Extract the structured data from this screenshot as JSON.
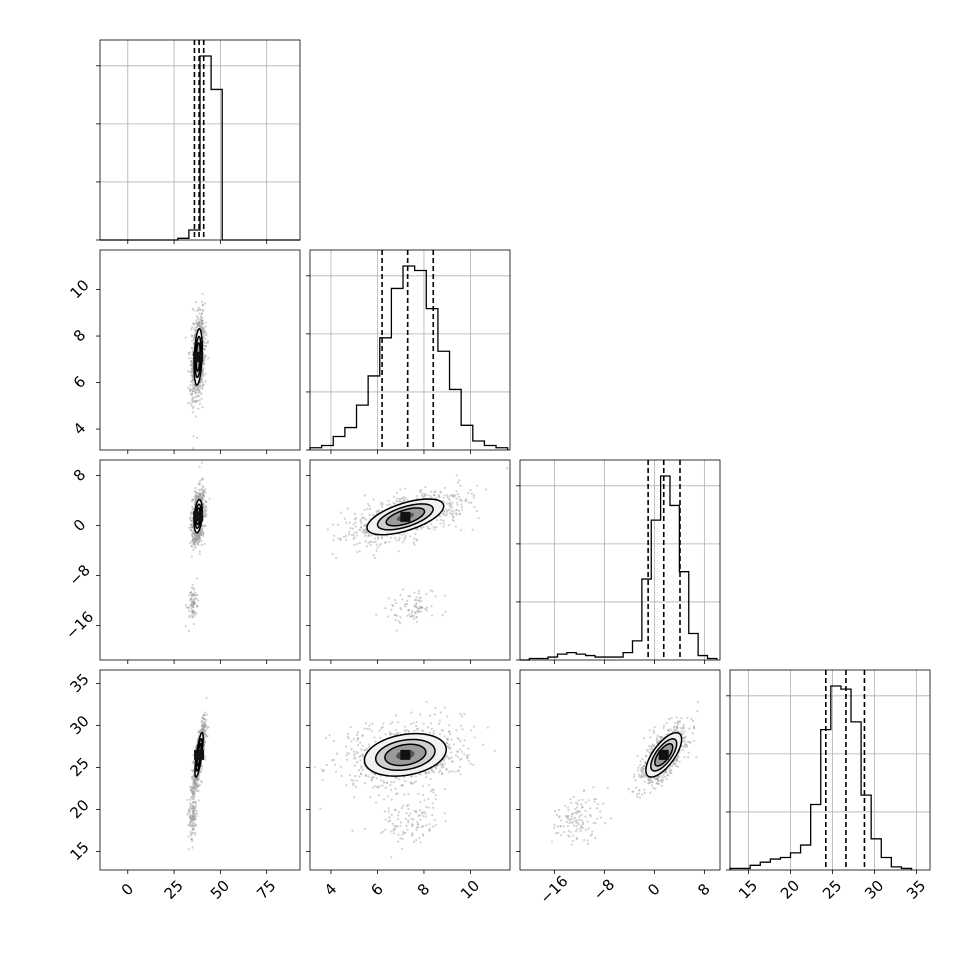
{
  "chart_data": {
    "type": "corner",
    "grid": true,
    "parameters": [
      {
        "range": [
          -15,
          93
        ],
        "ticks": [
          0,
          25,
          50,
          75
        ],
        "tick_labels": [
          "0",
          "25",
          "50",
          "75"
        ],
        "quantiles": [
          36,
          38.5,
          41
        ]
      },
      {
        "range": [
          3.1,
          11.7
        ],
        "ticks": [
          4,
          6,
          8,
          10
        ],
        "tick_labels": [
          "4",
          "6",
          "8",
          "10"
        ],
        "quantiles": [
          6.2,
          7.3,
          8.4
        ]
      },
      {
        "range": [
          -21.5,
          10.5
        ],
        "ticks": [
          -16,
          -8,
          0,
          8
        ],
        "tick_labels": [
          "−16",
          "−8",
          "0",
          "8"
        ],
        "quantiles": [
          -1,
          1.5,
          4.1
        ]
      },
      {
        "range": [
          12.8,
          36.6
        ],
        "ticks": [
          15,
          20,
          25,
          30,
          35
        ],
        "tick_labels": [
          "15",
          "20",
          "25",
          "30",
          "35"
        ],
        "quantiles": [
          24.2,
          26.6,
          28.8
        ]
      }
    ],
    "histograms": [
      {
        "param": 0,
        "bins": [
          -15,
          -9,
          -3,
          3,
          9,
          15,
          21,
          27,
          33,
          39,
          45,
          51,
          57,
          63,
          69,
          75,
          81,
          87,
          93
        ],
        "counts": [
          0,
          0,
          0,
          0,
          0,
          0,
          0,
          2,
          12,
          220,
          180,
          0,
          0,
          0,
          0,
          0,
          0,
          0
        ]
      },
      {
        "param": 1,
        "bins": [
          3.1,
          3.6,
          4.1,
          4.6,
          5.1,
          5.6,
          6.1,
          6.6,
          7.1,
          7.6,
          8.1,
          8.6,
          9.1,
          9.6,
          10.1,
          10.6,
          11.1,
          11.6
        ],
        "counts": [
          1,
          2,
          6,
          10,
          20,
          33,
          50,
          72,
          82,
          80,
          63,
          44,
          27,
          11,
          4,
          2,
          1
        ]
      },
      {
        "param": 2,
        "bins": [
          -21.5,
          -20,
          -18.5,
          -17,
          -15.5,
          -14,
          -12.5,
          -11,
          -9.5,
          -8,
          -6.5,
          -5,
          -3.5,
          -2,
          -0.5,
          1,
          2.5,
          4,
          5.5,
          7,
          8.5,
          10
        ],
        "counts": [
          0,
          1,
          1,
          2,
          4,
          5,
          4,
          3,
          2,
          2,
          2,
          5,
          13,
          55,
          95,
          125,
          105,
          60,
          18,
          3,
          1
        ]
      },
      {
        "param": 3,
        "bins": [
          12.8,
          14,
          15.2,
          16.4,
          17.6,
          18.8,
          20,
          21.2,
          22.4,
          23.6,
          24.8,
          26,
          27.2,
          28.4,
          29.6,
          30.8,
          32,
          33.2,
          34.4
        ],
        "counts": [
          1,
          1,
          3,
          5,
          7,
          8,
          11,
          16,
          42,
          90,
          118,
          116,
          95,
          48,
          20,
          8,
          2,
          1
        ]
      }
    ],
    "pairs": [
      {
        "x_param": 0,
        "y_param": 1,
        "center": [
          38,
          7.1
        ],
        "spread": [
          2,
          1.1
        ],
        "rho": 0.3,
        "cloud_spread": [
          3.2,
          1.6
        ],
        "outlier_fraction": 0
      },
      {
        "x_param": 0,
        "y_param": 2,
        "center": [
          38,
          1.5
        ],
        "spread": [
          2,
          2.4
        ],
        "rho": 0.3,
        "cloud_spread": [
          3.0,
          3.8
        ],
        "outlier_fraction": 0.1,
        "outlier_center": [
          35,
          -13
        ],
        "outlier_spread": [
          2.5,
          3
        ]
      },
      {
        "x_param": 1,
        "y_param": 2,
        "center": [
          7.2,
          1.4
        ],
        "spread": [
          1.5,
          2.6
        ],
        "rho": 0.6,
        "cloud_spread": [
          2.2,
          3.6
        ],
        "outlier_fraction": 0.1,
        "outlier_center": [
          7.5,
          -13
        ],
        "outlier_spread": [
          1.2,
          2.5
        ]
      },
      {
        "x_param": 0,
        "y_param": 3,
        "center": [
          38.5,
          26.5
        ],
        "spread": [
          2,
          2.4
        ],
        "rho": 0.75,
        "cloud_spread": [
          3,
          3.5
        ],
        "outlier_fraction": 0.12,
        "outlier_center": [
          35,
          19
        ],
        "outlier_spread": [
          2,
          3
        ]
      },
      {
        "x_param": 1,
        "y_param": 3,
        "center": [
          7.2,
          26.5
        ],
        "spread": [
          1.6,
          2.3
        ],
        "rho": 0.25,
        "cloud_spread": [
          2.3,
          3.4
        ],
        "outlier_fraction": 0.12,
        "outlier_center": [
          7.5,
          19
        ],
        "outlier_spread": [
          1.5,
          3
        ]
      },
      {
        "x_param": 2,
        "y_param": 3,
        "center": [
          1.5,
          26.5
        ],
        "spread": [
          2.6,
          2.4
        ],
        "rho": 0.7,
        "cloud_spread": [
          3.5,
          3.4
        ],
        "outlier_fraction": 0.12,
        "outlier_center": [
          -12,
          19
        ],
        "outlier_spread": [
          3.5,
          3
        ]
      }
    ],
    "colors": {
      "line": "#000000",
      "grid": "#b0b0b0",
      "scatter": "#999999"
    }
  }
}
